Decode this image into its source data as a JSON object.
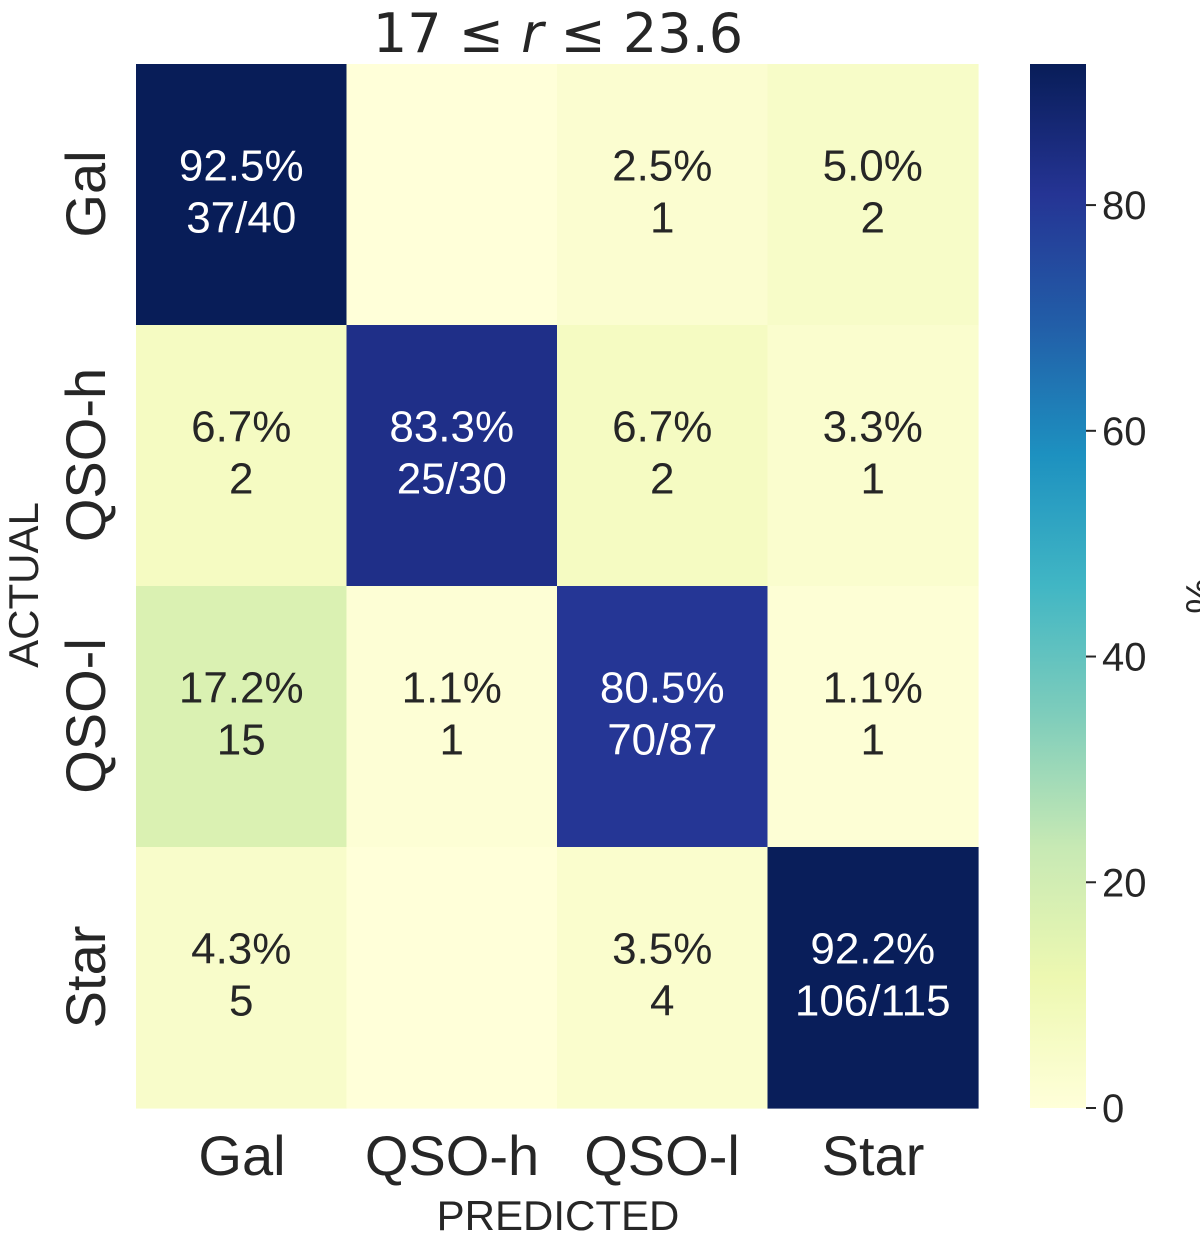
{
  "chart_data": {
    "type": "heatmap",
    "title_parts": [
      "17 ≤ ",
      "r",
      " ≤ 23.6"
    ],
    "xlabel": "PREDICTED",
    "ylabel": "ACTUAL",
    "x_categories": [
      "Gal",
      "QSO-h",
      "QSO-l",
      "Star"
    ],
    "y_categories": [
      "Gal",
      "QSO-h",
      "QSO-l",
      "Star"
    ],
    "values": [
      [
        92.5,
        0.0,
        2.5,
        5.0
      ],
      [
        6.7,
        83.3,
        6.7,
        3.3
      ],
      [
        17.2,
        1.1,
        80.5,
        1.1
      ],
      [
        4.3,
        0.0,
        3.5,
        92.2
      ]
    ],
    "annotations": [
      [
        [
          "92.5%",
          "37/40"
        ],
        [
          "",
          ""
        ],
        [
          "2.5%",
          "1"
        ],
        [
          "5.0%",
          "2"
        ]
      ],
      [
        [
          "6.7%",
          "2"
        ],
        [
          "83.3%",
          "25/30"
        ],
        [
          "6.7%",
          "2"
        ],
        [
          "3.3%",
          "1"
        ]
      ],
      [
        [
          "17.2%",
          "15"
        ],
        [
          "1.1%",
          "1"
        ],
        [
          "80.5%",
          "70/87"
        ],
        [
          "1.1%",
          "1"
        ]
      ],
      [
        [
          "4.3%",
          "5"
        ],
        [
          "",
          ""
        ],
        [
          "3.5%",
          "4"
        ],
        [
          "92.2%",
          "106/115"
        ]
      ]
    ],
    "colorbar": {
      "label": "%",
      "ticks": [
        0,
        20,
        40,
        60,
        80
      ],
      "range": [
        0,
        92.5
      ],
      "colormap": "YlGnBu"
    },
    "grid": false
  }
}
